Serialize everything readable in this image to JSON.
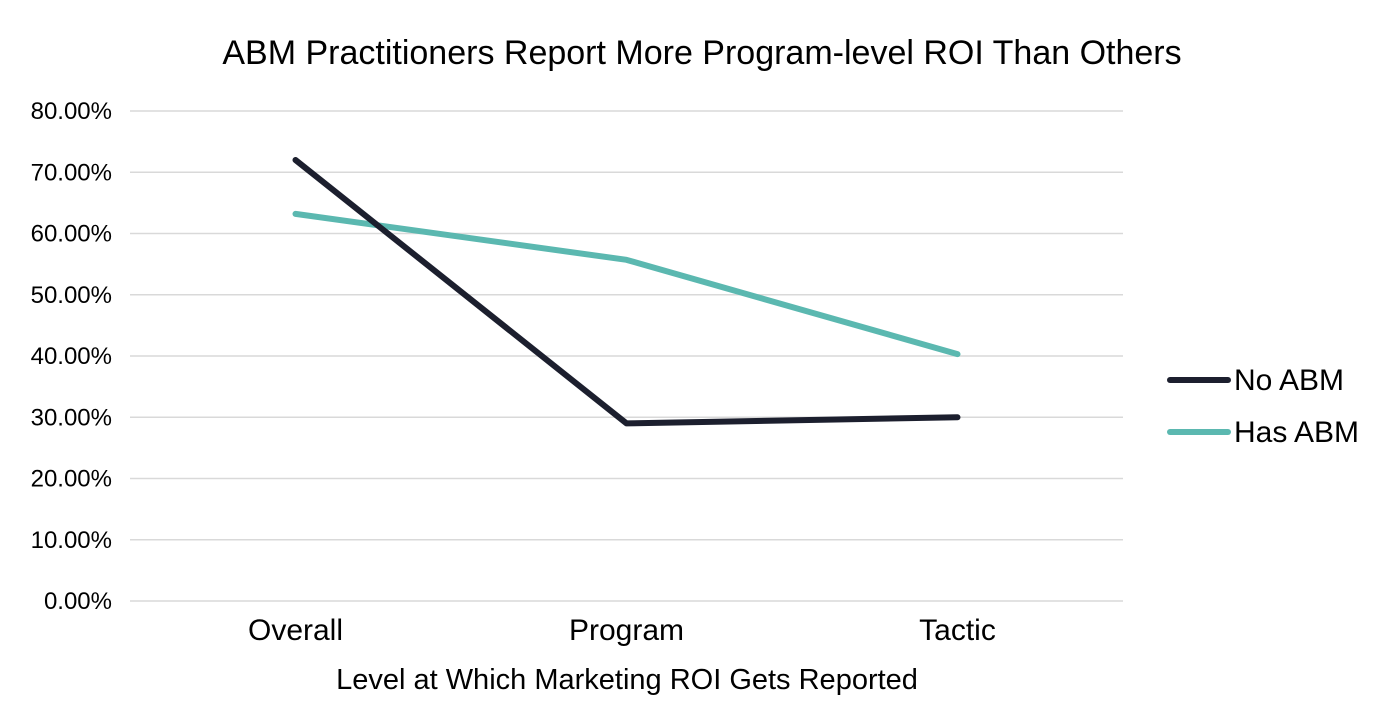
{
  "chart_data": {
    "type": "line",
    "title": "ABM Practitioners Report More Program-level ROI Than Others",
    "xlabel": "Level at Which Marketing ROI Gets Reported",
    "ylabel": "",
    "categories": [
      "Overall",
      "Program",
      "Tactic"
    ],
    "ylim": [
      0,
      80
    ],
    "yticks": [
      0,
      10,
      20,
      30,
      40,
      50,
      60,
      70,
      80
    ],
    "ytick_labels": [
      "0.00%",
      "10.00%",
      "20.00%",
      "30.00%",
      "40.00%",
      "50.00%",
      "60.00%",
      "70.00%",
      "80.00%"
    ],
    "grid": true,
    "legend_position": "right",
    "series": [
      {
        "name": "No ABM",
        "color": "#1c1f2e",
        "values": [
          72.0,
          29.0,
          30.0
        ]
      },
      {
        "name": "Has ABM",
        "color": "#5bb8b0",
        "values": [
          63.2,
          55.7,
          40.3
        ]
      }
    ]
  }
}
